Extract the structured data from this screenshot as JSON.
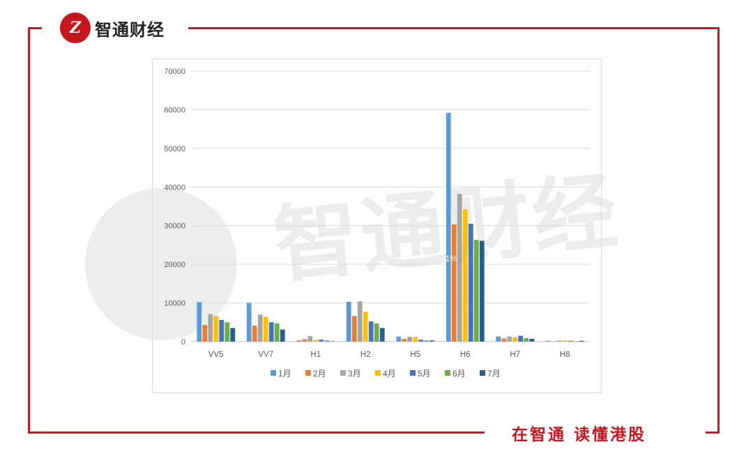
{
  "brand": {
    "logo_letter": "Z",
    "name": "智通财经"
  },
  "slogan": "在智通  读懂港股",
  "watermark": {
    "text": "智通财经"
  },
  "colors": {
    "brand_red": "#c8161e"
  },
  "chart_data": {
    "type": "bar",
    "categories": [
      "VV5",
      "VV7",
      "H1",
      "H2",
      "H5",
      "H6",
      "H7",
      "H8"
    ],
    "ylim": [
      0,
      70000
    ],
    "yticks": [
      "0",
      "10000",
      "20000",
      "30000",
      "40000",
      "50000",
      "60000",
      "70000"
    ],
    "grid": true,
    "legend_position": "bottom",
    "annotation": "1%",
    "series": [
      {
        "name": "1月",
        "color": "#5b9bd5",
        "values": [
          10200,
          10000,
          300,
          10300,
          1300,
          59200,
          1300,
          200
        ]
      },
      {
        "name": "2月",
        "color": "#ed7d31",
        "values": [
          4300,
          4100,
          600,
          6600,
          700,
          30300,
          800,
          100
        ]
      },
      {
        "name": "3月",
        "color": "#a5a5a5",
        "values": [
          7100,
          7000,
          1400,
          10400,
          1200,
          38200,
          1300,
          300
        ]
      },
      {
        "name": "4月",
        "color": "#ffc000",
        "values": [
          6600,
          6400,
          400,
          7700,
          1200,
          34200,
          1100,
          300
        ]
      },
      {
        "name": "5月",
        "color": "#4472c4",
        "values": [
          5600,
          5000,
          500,
          5200,
          500,
          30500,
          1500,
          200
        ]
      },
      {
        "name": "6月",
        "color": "#70ad47",
        "values": [
          5000,
          4700,
          300,
          4700,
          300,
          26300,
          900,
          100
        ]
      },
      {
        "name": "7月",
        "color": "#255e91",
        "values": [
          3500,
          3100,
          100,
          3500,
          300,
          26100,
          700,
          200
        ]
      }
    ]
  }
}
